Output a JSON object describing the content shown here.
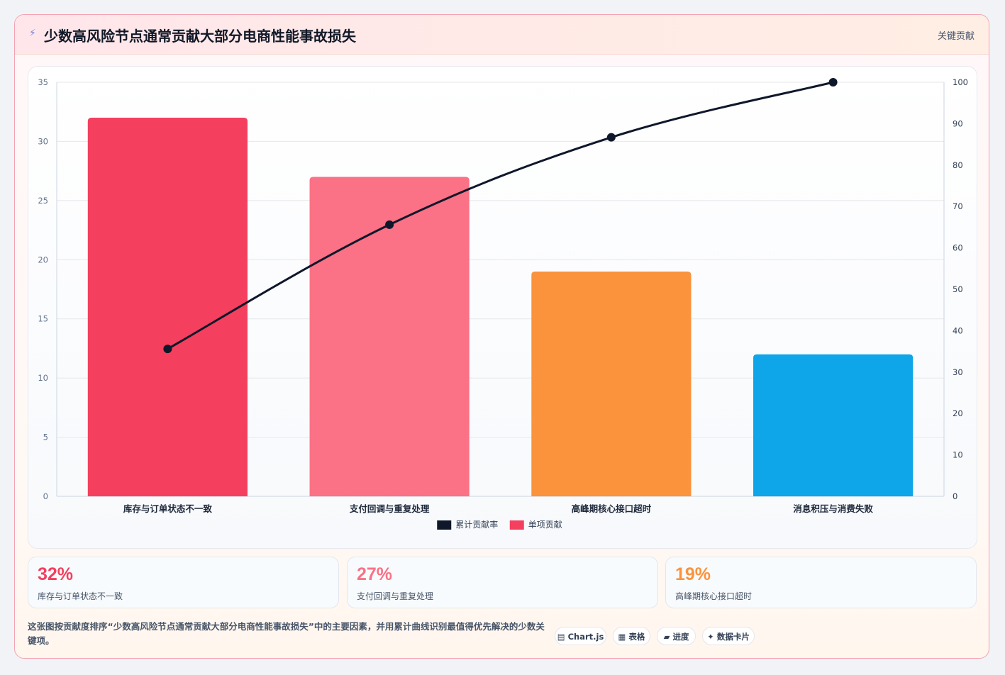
{
  "header": {
    "icon": "lightning-icon",
    "title": "少数高风险节点通常贡献大部分电商性能事故损失",
    "badge": "关键贡献"
  },
  "chart_data": {
    "type": "bar",
    "categories": [
      "库存与订单状态不一致",
      "支付回调与重复处理",
      "高峰期核心接口超时",
      "消息积压与消费失败"
    ],
    "series": [
      {
        "name": "单项贡献",
        "type": "bar",
        "axis": "left",
        "values": [
          32,
          27,
          19,
          12
        ],
        "colors": [
          "#f43f5e",
          "#fb7185",
          "#fb923c",
          "#0ea5e9"
        ]
      },
      {
        "name": "累计贡献率",
        "type": "line",
        "axis": "right",
        "values": [
          35.6,
          65.6,
          86.7,
          100
        ],
        "color": "#0f172a"
      }
    ],
    "y_left": {
      "min": 0,
      "max": 35,
      "ticks": [
        0,
        5,
        10,
        15,
        20,
        25,
        30,
        35
      ]
    },
    "y_right": {
      "min": 0,
      "max": 100,
      "ticks": [
        0,
        10,
        20,
        30,
        40,
        50,
        60,
        70,
        80,
        90,
        100
      ]
    },
    "legend": [
      {
        "label": "累计贡献率",
        "color": "#0f172a"
      },
      {
        "label": "单项贡献",
        "color": "#f43f5e"
      }
    ],
    "legend_position": "bottom",
    "grid": true
  },
  "stats": [
    {
      "value": "32%",
      "label": "库存与订单状态不一致",
      "color": "#f43f5e"
    },
    {
      "value": "27%",
      "label": "支付回调与重复处理",
      "color": "#fb7185"
    },
    {
      "value": "19%",
      "label": "高峰期核心接口超时",
      "color": "#fb923c"
    }
  ],
  "footer": {
    "description": "这张图按贡献度排序“少数高风险节点通常贡献大部分电商性能事故损失”中的主要因素，并用累计曲线识别最值得优先解决的少数关键项。",
    "chips": [
      "Chart.js",
      "表格",
      "进度",
      "数据卡片"
    ],
    "chip_icons": [
      "chart-icon",
      "table-icon",
      "progress-icon",
      "sparkle-icon"
    ]
  }
}
